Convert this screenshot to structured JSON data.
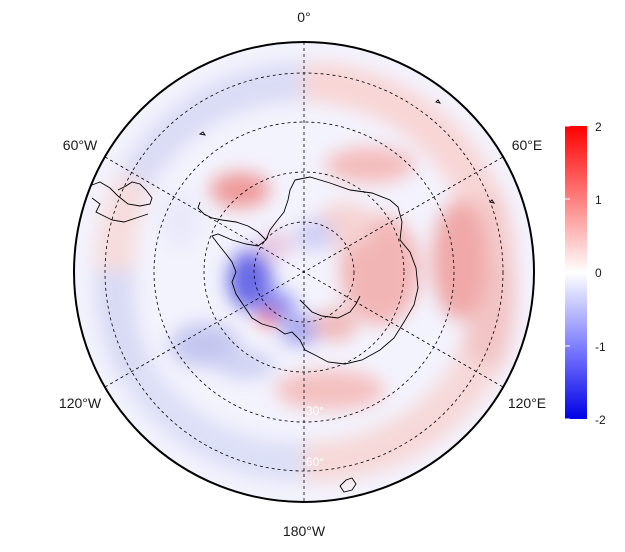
{
  "map": {
    "projection": "south-polar-stereographic",
    "longitude_labels": {
      "top": "0°",
      "bottom": "180°W",
      "upper_left": "60°W",
      "upper_right": "60°E",
      "lower_left": "120°W",
      "lower_right": "120°E"
    },
    "latitude_labels": [
      "30°",
      "60°"
    ],
    "colorbar": {
      "min": -2,
      "max": 2,
      "ticks": [
        "2",
        "1",
        "0",
        "-1",
        "-2"
      ],
      "low_color": "#0000e6",
      "mid_color": "#ffffff",
      "high_color": "#ff0000"
    },
    "colors": {
      "border": "#000000",
      "graticule": "#000000",
      "coastline": "#000000"
    }
  }
}
